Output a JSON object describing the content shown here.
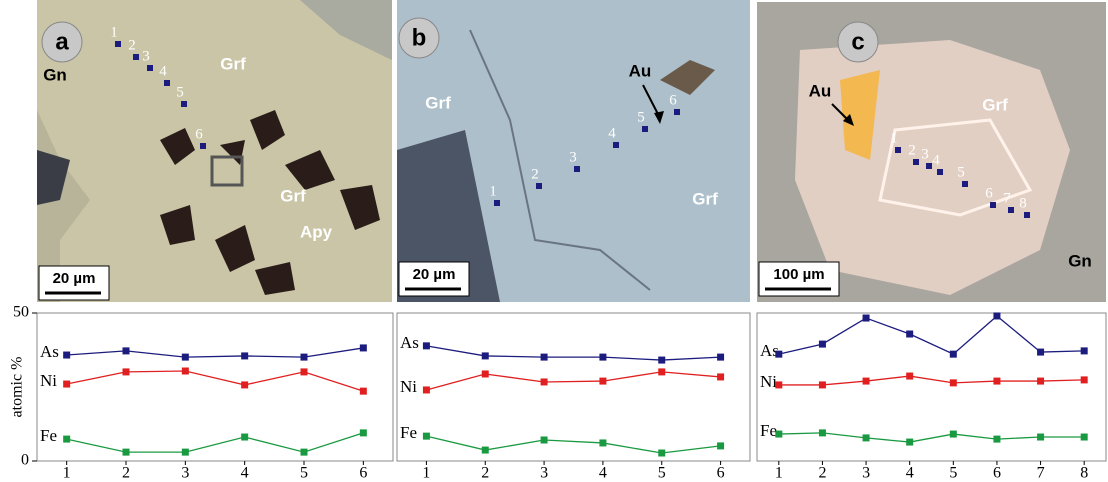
{
  "panels": [
    {
      "letter": "a",
      "labels": [
        "Gn",
        "Grf",
        "Grf",
        "Apy"
      ],
      "scale": "20 µm",
      "points": [
        "1",
        "2",
        "3",
        "4",
        "5",
        "6"
      ]
    },
    {
      "letter": "b",
      "labels": [
        "Grf",
        "Grf",
        "Au"
      ],
      "scale": "20 µm",
      "points": [
        "1",
        "2",
        "3",
        "4",
        "5",
        "6"
      ]
    },
    {
      "letter": "c",
      "labels": [
        "Au",
        "Grf",
        "Gn"
      ],
      "scale": "100 µm",
      "points": [
        "1",
        "2",
        "3",
        "4",
        "5",
        "6",
        "7",
        "8"
      ]
    }
  ],
  "chart_data": [
    {
      "type": "line",
      "y_label": "atomic %",
      "categories": [
        "1",
        "2",
        "3",
        "4",
        "5",
        "6"
      ],
      "ylim": [
        0,
        50
      ],
      "yticks": [
        0,
        50
      ],
      "series": [
        {
          "name": "As",
          "color": "#1c1c7e",
          "values": [
            35.8,
            37.2,
            35.1,
            35.5,
            35.1,
            38.2
          ]
        },
        {
          "name": "Ni",
          "color": "#e02020",
          "values": [
            26.0,
            30.1,
            30.4,
            25.7,
            30.1,
            23.6
          ]
        },
        {
          "name": "Fe",
          "color": "#1a9a40",
          "values": [
            7.4,
            3.0,
            3.0,
            8.1,
            3.0,
            9.5
          ]
        }
      ]
    },
    {
      "type": "line",
      "categories": [
        "1",
        "2",
        "3",
        "4",
        "5",
        "6"
      ],
      "ylim": [
        0,
        50
      ],
      "series": [
        {
          "name": "As",
          "color": "#1c1c7e",
          "values": [
            38.9,
            35.5,
            35.1,
            35.1,
            34.1,
            35.1
          ]
        },
        {
          "name": "Ni",
          "color": "#e02020",
          "values": [
            24.0,
            29.4,
            26.7,
            27.0,
            30.1,
            28.4
          ]
        },
        {
          "name": "Fe",
          "color": "#1a9a40",
          "values": [
            8.4,
            3.7,
            7.1,
            6.1,
            2.7,
            5.1
          ]
        }
      ]
    },
    {
      "type": "line",
      "categories": [
        "1",
        "2",
        "3",
        "4",
        "5",
        "6",
        "7",
        "8"
      ],
      "ylim": [
        0,
        50
      ],
      "series": [
        {
          "name": "As",
          "color": "#1c1c7e",
          "values": [
            36.1,
            39.5,
            48.3,
            42.9,
            36.1,
            49.0,
            36.8,
            37.2
          ]
        },
        {
          "name": "Ni",
          "color": "#e02020",
          "values": [
            25.7,
            25.7,
            27.0,
            28.7,
            26.4,
            27.0,
            27.0,
            27.4
          ]
        },
        {
          "name": "Fe",
          "color": "#1a9a40",
          "values": [
            9.1,
            9.5,
            7.8,
            6.4,
            9.1,
            7.4,
            8.1,
            8.1
          ]
        }
      ]
    }
  ]
}
